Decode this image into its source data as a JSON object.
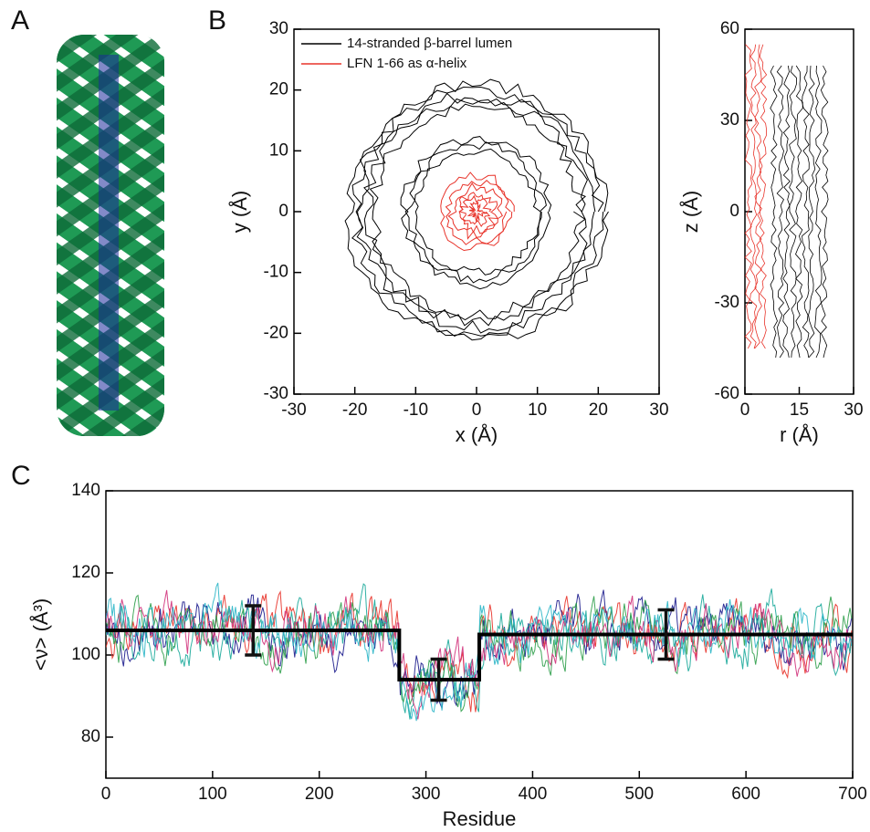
{
  "panel_labels": [
    "A",
    "B",
    "C"
  ],
  "chart_data": [
    {
      "type": "contour",
      "xlabel": "x (Å)",
      "ylabel": "y (Å)",
      "xlim": [
        -30,
        30
      ],
      "xticks": [
        -30,
        -20,
        -10,
        0,
        10,
        20,
        30
      ],
      "ylim": [
        -30,
        30
      ],
      "yticks": [
        -30,
        -20,
        -10,
        0,
        10,
        20,
        30
      ],
      "series": [
        {
          "name": "14-stranded  β-barrel lumen",
          "color": "#000000"
        },
        {
          "name": "LFN 1-66 as  α-helix",
          "color": "#e8332a"
        }
      ]
    },
    {
      "type": "contour",
      "xlabel": "r (Å)",
      "ylabel": "z (Å)",
      "xlim": [
        0,
        30
      ],
      "xticks": [
        0,
        15,
        30
      ],
      "ylim": [
        -60,
        60
      ],
      "yticks": [
        -60,
        -30,
        0,
        30,
        60
      ]
    },
    {
      "type": "line",
      "xlabel": "Residue",
      "ylabel": "<ν> (Å³)",
      "xlim": [
        0,
        700
      ],
      "xticks": [
        0,
        100,
        200,
        300,
        400,
        500,
        600,
        700
      ],
      "ylim": [
        70,
        140
      ],
      "yticks": [
        80,
        100,
        120,
        140
      ],
      "series": [
        {
          "color": "#000000",
          "x": [
            0,
            275,
            275,
            350,
            350,
            700
          ],
          "values": [
            106,
            106,
            94,
            94,
            105,
            105
          ]
        }
      ],
      "error_bars": {
        "x": [
          138,
          312,
          525
        ],
        "values": [
          106,
          94,
          105
        ],
        "errors": [
          6,
          5,
          6
        ]
      }
    }
  ]
}
